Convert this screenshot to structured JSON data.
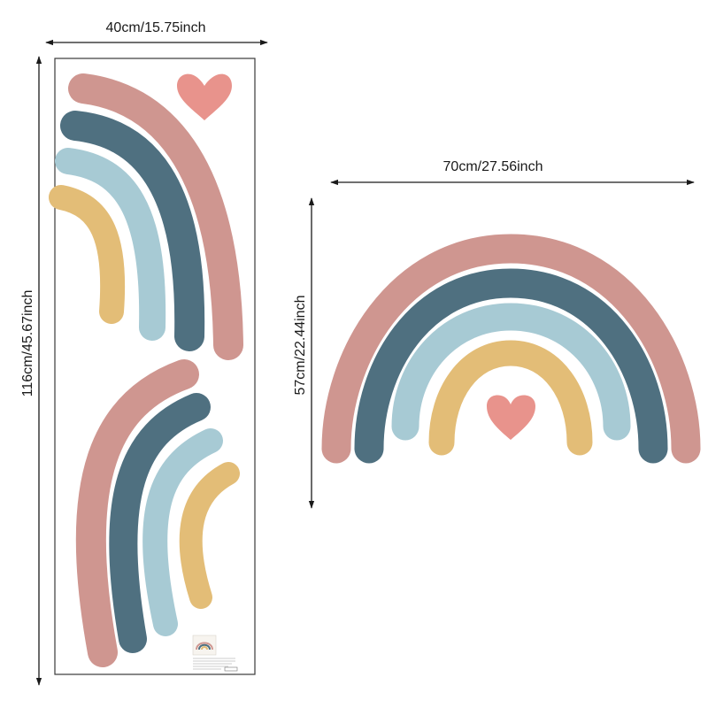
{
  "dimensions": {
    "sheet_width": "40cm/15.75inch",
    "sheet_height": "116cm/45.67inch",
    "rainbow_width": "70cm/27.56inch",
    "rainbow_height": "57cm/22.44inch"
  },
  "colors": {
    "pink": "#cf9690",
    "navy": "#4f7080",
    "light_blue": "#a7cad4",
    "mustard": "#e3bd77",
    "heart": "#e8938c",
    "dimension_line": "#1a1a1a",
    "sheet_border": "#3a3a3a"
  },
  "icons": {
    "heart": "heart-icon",
    "arrow": "arrowhead-icon"
  }
}
